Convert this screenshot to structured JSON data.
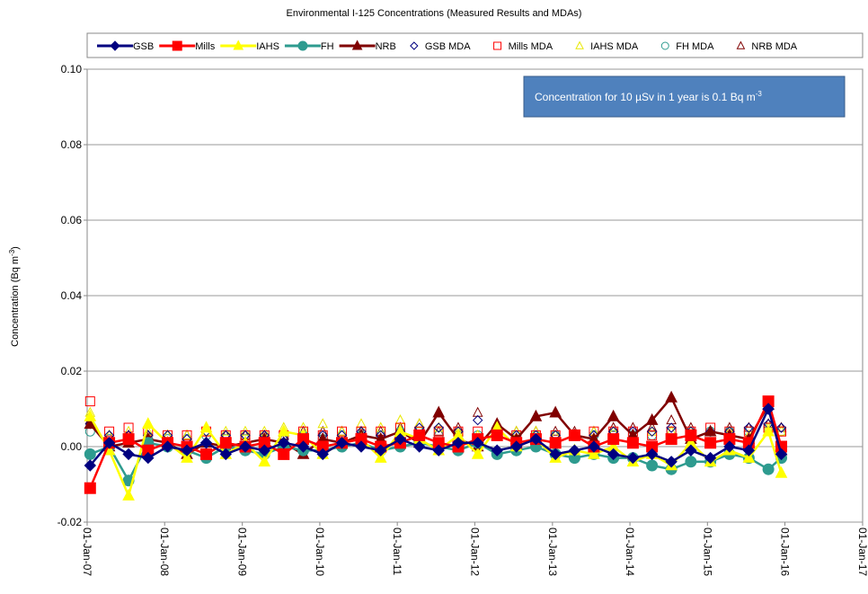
{
  "chart_data": {
    "type": "line",
    "title": "Environmental I-125 Concentrations (Measured Results and MDAs)",
    "y_label": {
      "text": "Concentration (Bq m",
      "sup": "-3",
      "end": ")"
    },
    "annotation": {
      "text": "Concentration for 10 µSv in 1 year is 0.1 Bq m",
      "sup": "-3"
    },
    "x": [
      "2007-01-15",
      "2007-04-15",
      "2007-07-15",
      "2007-10-15",
      "2008-01-15",
      "2008-04-15",
      "2008-07-15",
      "2008-10-15",
      "2009-01-15",
      "2009-04-15",
      "2009-07-15",
      "2009-10-15",
      "2010-01-15",
      "2010-04-15",
      "2010-07-15",
      "2010-10-15",
      "2011-01-15",
      "2011-04-15",
      "2011-07-15",
      "2011-10-15",
      "2012-01-15",
      "2012-04-15",
      "2012-07-15",
      "2012-10-15",
      "2013-01-15",
      "2013-04-15",
      "2013-07-15",
      "2013-10-15",
      "2014-01-15",
      "2014-04-15",
      "2014-07-15",
      "2014-10-15",
      "2015-01-15",
      "2015-04-15",
      "2015-07-15",
      "2015-10-15",
      "2015-12-15"
    ],
    "xlim": [
      "2007-01-01",
      "2017-01-01"
    ],
    "xticks": [
      {
        "value": "2007-01-01",
        "label": "01-Jan-07"
      },
      {
        "value": "2008-01-01",
        "label": "01-Jan-08"
      },
      {
        "value": "2009-01-01",
        "label": "01-Jan-09"
      },
      {
        "value": "2010-01-01",
        "label": "01-Jan-10"
      },
      {
        "value": "2011-01-01",
        "label": "01-Jan-11"
      },
      {
        "value": "2012-01-01",
        "label": "01-Jan-12"
      },
      {
        "value": "2013-01-01",
        "label": "01-Jan-13"
      },
      {
        "value": "2014-01-01",
        "label": "01-Jan-14"
      },
      {
        "value": "2015-01-01",
        "label": "01-Jan-15"
      },
      {
        "value": "2016-01-01",
        "label": "01-Jan-16"
      },
      {
        "value": "2017-01-01",
        "label": "01-Jan-17"
      }
    ],
    "ylim": [
      -0.02,
      0.1
    ],
    "yticks": [
      {
        "value": -0.02,
        "label": "-0.02"
      },
      {
        "value": 0,
        "label": "0.00"
      },
      {
        "value": 0.02,
        "label": "0.02"
      },
      {
        "value": 0.04,
        "label": "0.04"
      },
      {
        "value": 0.06,
        "label": "0.06"
      },
      {
        "value": 0.08,
        "label": "0.08"
      },
      {
        "value": 0.1,
        "label": "0.10"
      }
    ],
    "grid": true,
    "legend": "top",
    "series": [
      {
        "name": "GSB",
        "color": "#000080",
        "marker": "diamond",
        "line": true,
        "values": [
          -0.005,
          0.001,
          -0.002,
          -0.003,
          0.0,
          -0.001,
          0.001,
          -0.002,
          0.0,
          -0.001,
          0.001,
          0.0,
          -0.002,
          0.001,
          0.0,
          -0.001,
          0.002,
          0.0,
          -0.001,
          0.001,
          0.001,
          -0.001,
          0.0,
          0.002,
          -0.002,
          -0.001,
          0.0,
          -0.002,
          -0.003,
          -0.002,
          -0.004,
          -0.001,
          -0.003,
          0.0,
          -0.001,
          0.01,
          -0.002
        ]
      },
      {
        "name": "Mills",
        "color": "#ff0000",
        "marker": "square",
        "line": true,
        "values": [
          -0.011,
          0.001,
          0.002,
          -0.001,
          0.001,
          0.0,
          -0.002,
          0.001,
          0.0,
          0.001,
          -0.002,
          0.002,
          0.0,
          0.001,
          0.002,
          0.0,
          0.001,
          0.003,
          0.001,
          0.0,
          0.002,
          0.003,
          0.001,
          0.002,
          0.001,
          0.003,
          0.0,
          0.002,
          0.001,
          0.0,
          0.002,
          0.003,
          0.001,
          0.002,
          0.001,
          0.012,
          0.0
        ]
      },
      {
        "name": "IAHS",
        "color": "#ffff00",
        "marker": "triangle",
        "line": true,
        "values": [
          0.008,
          -0.001,
          -0.013,
          0.006,
          0.001,
          -0.003,
          0.005,
          -0.002,
          0.001,
          -0.004,
          0.004,
          0.003,
          -0.002,
          0.001,
          0.002,
          -0.003,
          0.004,
          0.002,
          -0.001,
          0.003,
          -0.002,
          0.005,
          0.0,
          0.002,
          -0.003,
          -0.001,
          -0.002,
          0.0,
          -0.004,
          -0.002,
          -0.005,
          0.001,
          -0.004,
          -0.001,
          -0.003,
          0.004,
          -0.007
        ]
      },
      {
        "name": "FH",
        "color": "#2e9b8f",
        "marker": "circle",
        "line": true,
        "values": [
          -0.002,
          0.0,
          -0.009,
          0.001,
          0.0,
          -0.001,
          -0.003,
          0.0,
          -0.001,
          -0.002,
          0.0,
          -0.001,
          -0.001,
          0.0,
          0.001,
          -0.001,
          0.0,
          0.001,
          0.0,
          -0.001,
          0.001,
          -0.002,
          -0.001,
          0.0,
          -0.002,
          -0.003,
          -0.002,
          -0.003,
          -0.003,
          -0.005,
          -0.006,
          -0.004,
          -0.004,
          -0.002,
          -0.003,
          -0.006,
          -0.003
        ]
      },
      {
        "name": "NRB",
        "color": "#800000",
        "marker": "triangle",
        "line": true,
        "values": [
          0.006,
          0.0,
          0.001,
          0.002,
          0.001,
          -0.002,
          0.001,
          0.0,
          0.001,
          0.002,
          0.001,
          -0.002,
          0.002,
          0.001,
          0.003,
          0.002,
          0.004,
          0.001,
          0.009,
          0.002,
          0.0,
          0.006,
          0.002,
          0.008,
          0.009,
          0.003,
          0.002,
          0.008,
          0.003,
          0.007,
          0.013,
          0.002,
          0.004,
          0.003,
          0.002,
          0.011,
          -0.001
        ]
      },
      {
        "name": "GSB MDA",
        "color": "#000080",
        "marker": "diamond",
        "line": false,
        "values": [
          0.006,
          0.003,
          0.003,
          0.003,
          0.003,
          0.002,
          0.004,
          0.003,
          0.003,
          0.003,
          0.002,
          0.003,
          0.003,
          0.003,
          0.004,
          0.003,
          0.004,
          0.005,
          0.005,
          0.004,
          0.007,
          0.003,
          0.003,
          0.003,
          0.003,
          0.003,
          0.003,
          0.004,
          0.004,
          0.004,
          0.005,
          0.004,
          0.004,
          0.004,
          0.005,
          0.006,
          0.005
        ]
      },
      {
        "name": "Mills MDA",
        "color": "#ff0000",
        "marker": "square",
        "line": false,
        "values": [
          0.012,
          0.004,
          0.005,
          0.004,
          0.003,
          0.003,
          0.004,
          0.003,
          0.003,
          0.003,
          0.003,
          0.004,
          0.003,
          0.004,
          0.004,
          0.004,
          0.005,
          0.004,
          0.004,
          0.004,
          0.004,
          0.003,
          0.003,
          0.003,
          0.003,
          0.003,
          0.004,
          0.004,
          0.004,
          0.003,
          0.004,
          0.004,
          0.005,
          0.004,
          0.004,
          0.005,
          0.004
        ]
      },
      {
        "name": "IAHS MDA",
        "color": "#e8e800",
        "marker": "triangle",
        "line": false,
        "values": [
          0.009,
          0.003,
          0.004,
          0.004,
          0.003,
          0.003,
          0.004,
          0.004,
          0.004,
          0.004,
          0.005,
          0.005,
          0.006,
          0.004,
          0.006,
          0.005,
          0.007,
          0.006,
          0.005,
          0.004,
          0.003,
          0.004,
          0.004,
          0.004,
          0.003,
          0.003,
          0.004,
          0.004,
          0.003,
          0.004,
          0.004,
          0.004,
          0.004,
          0.004,
          0.003,
          0.005,
          0.004
        ]
      },
      {
        "name": "FH MDA",
        "color": "#2e9b8f",
        "marker": "circle",
        "line": false,
        "values": [
          0.004,
          0.002,
          0.002,
          0.002,
          0.002,
          0.002,
          0.003,
          0.002,
          0.002,
          0.002,
          0.002,
          0.003,
          0.002,
          0.003,
          0.003,
          0.003,
          0.004,
          0.004,
          0.003,
          0.003,
          0.003,
          0.003,
          0.003,
          0.003,
          0.003,
          0.003,
          0.003,
          0.003,
          0.003,
          0.003,
          0.004,
          0.003,
          0.004,
          0.004,
          0.004,
          0.005,
          0.004
        ]
      },
      {
        "name": "NRB MDA",
        "color": "#800000",
        "marker": "triangle",
        "line": false,
        "values": [
          0.007,
          0.003,
          0.003,
          0.003,
          0.003,
          0.003,
          0.005,
          0.003,
          0.003,
          0.003,
          0.003,
          0.004,
          0.004,
          0.004,
          0.004,
          0.004,
          0.005,
          0.006,
          0.004,
          0.005,
          0.009,
          0.003,
          0.004,
          0.004,
          0.004,
          0.004,
          0.004,
          0.005,
          0.005,
          0.005,
          0.007,
          0.005,
          0.004,
          0.005,
          0.005,
          0.006,
          0.005
        ]
      }
    ]
  }
}
